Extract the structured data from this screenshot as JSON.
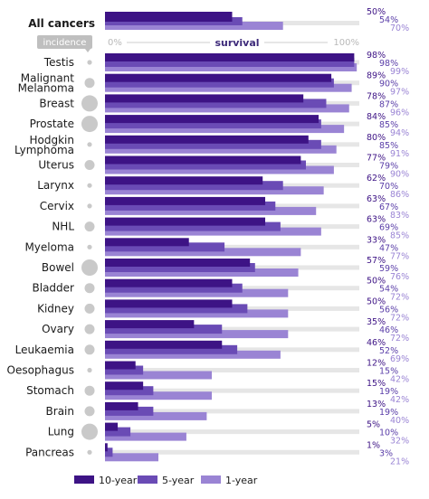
{
  "chart_data": {
    "type": "bar",
    "orientation": "horizontal",
    "xlabel": "survival",
    "xlim": [
      0,
      100
    ],
    "tick_labels": [
      "0%",
      "100%"
    ],
    "incidence_label": "incidence",
    "legend_position": "bottom-left",
    "colors": {
      "10-year": "#3d1385",
      "5-year": "#6a4bb5",
      "1-year": "#9a84d4",
      "track": "#e6e6e6",
      "incidence": "#c9c9c9"
    },
    "summary": {
      "category": "All cancers",
      "values": [
        50,
        54,
        70
      ]
    },
    "categories": [
      "Testis",
      "Malignant Melanoma",
      "Breast",
      "Prostate",
      "Hodgkin Lymphoma",
      "Uterus",
      "Larynx",
      "Cervix",
      "NHL",
      "Myeloma",
      "Bowel",
      "Bladder",
      "Kidney",
      "Ovary",
      "Leukaemia",
      "Oesophagus",
      "Stomach",
      "Brain",
      "Lung",
      "Pancreas"
    ],
    "category_lines": [
      [
        "Testis"
      ],
      [
        "Malignant",
        "Melanoma"
      ],
      [
        "Breast"
      ],
      [
        "Prostate"
      ],
      [
        "Hodgkin",
        "Lymphoma"
      ],
      [
        "Uterus"
      ],
      [
        "Larynx"
      ],
      [
        "Cervix"
      ],
      [
        "NHL"
      ],
      [
        "Myeloma"
      ],
      [
        "Bowel"
      ],
      [
        "Bladder"
      ],
      [
        "Kidney"
      ],
      [
        "Ovary"
      ],
      [
        "Leukaemia"
      ],
      [
        "Oesophagus"
      ],
      [
        "Stomach"
      ],
      [
        "Brain"
      ],
      [
        "Lung"
      ],
      [
        "Pancreas"
      ]
    ],
    "incidence_size": [
      "small",
      "medium",
      "large",
      "large",
      "small",
      "medium",
      "small",
      "small",
      "medium",
      "small",
      "large",
      "medium",
      "medium",
      "medium",
      "medium",
      "small",
      "medium",
      "medium",
      "large",
      "small"
    ],
    "series": [
      {
        "name": "10-year",
        "values": [
          98,
          89,
          78,
          84,
          80,
          77,
          62,
          63,
          63,
          33,
          57,
          50,
          50,
          35,
          46,
          12,
          15,
          13,
          5,
          1
        ]
      },
      {
        "name": "5-year",
        "values": [
          98,
          90,
          87,
          85,
          85,
          79,
          70,
          67,
          69,
          47,
          59,
          54,
          56,
          46,
          52,
          15,
          19,
          19,
          10,
          3
        ]
      },
      {
        "name": "1-year",
        "values": [
          99,
          97,
          96,
          94,
          91,
          90,
          86,
          83,
          85,
          77,
          76,
          72,
          72,
          72,
          69,
          42,
          42,
          40,
          32,
          21
        ]
      }
    ],
    "pct_symbol": "%"
  }
}
